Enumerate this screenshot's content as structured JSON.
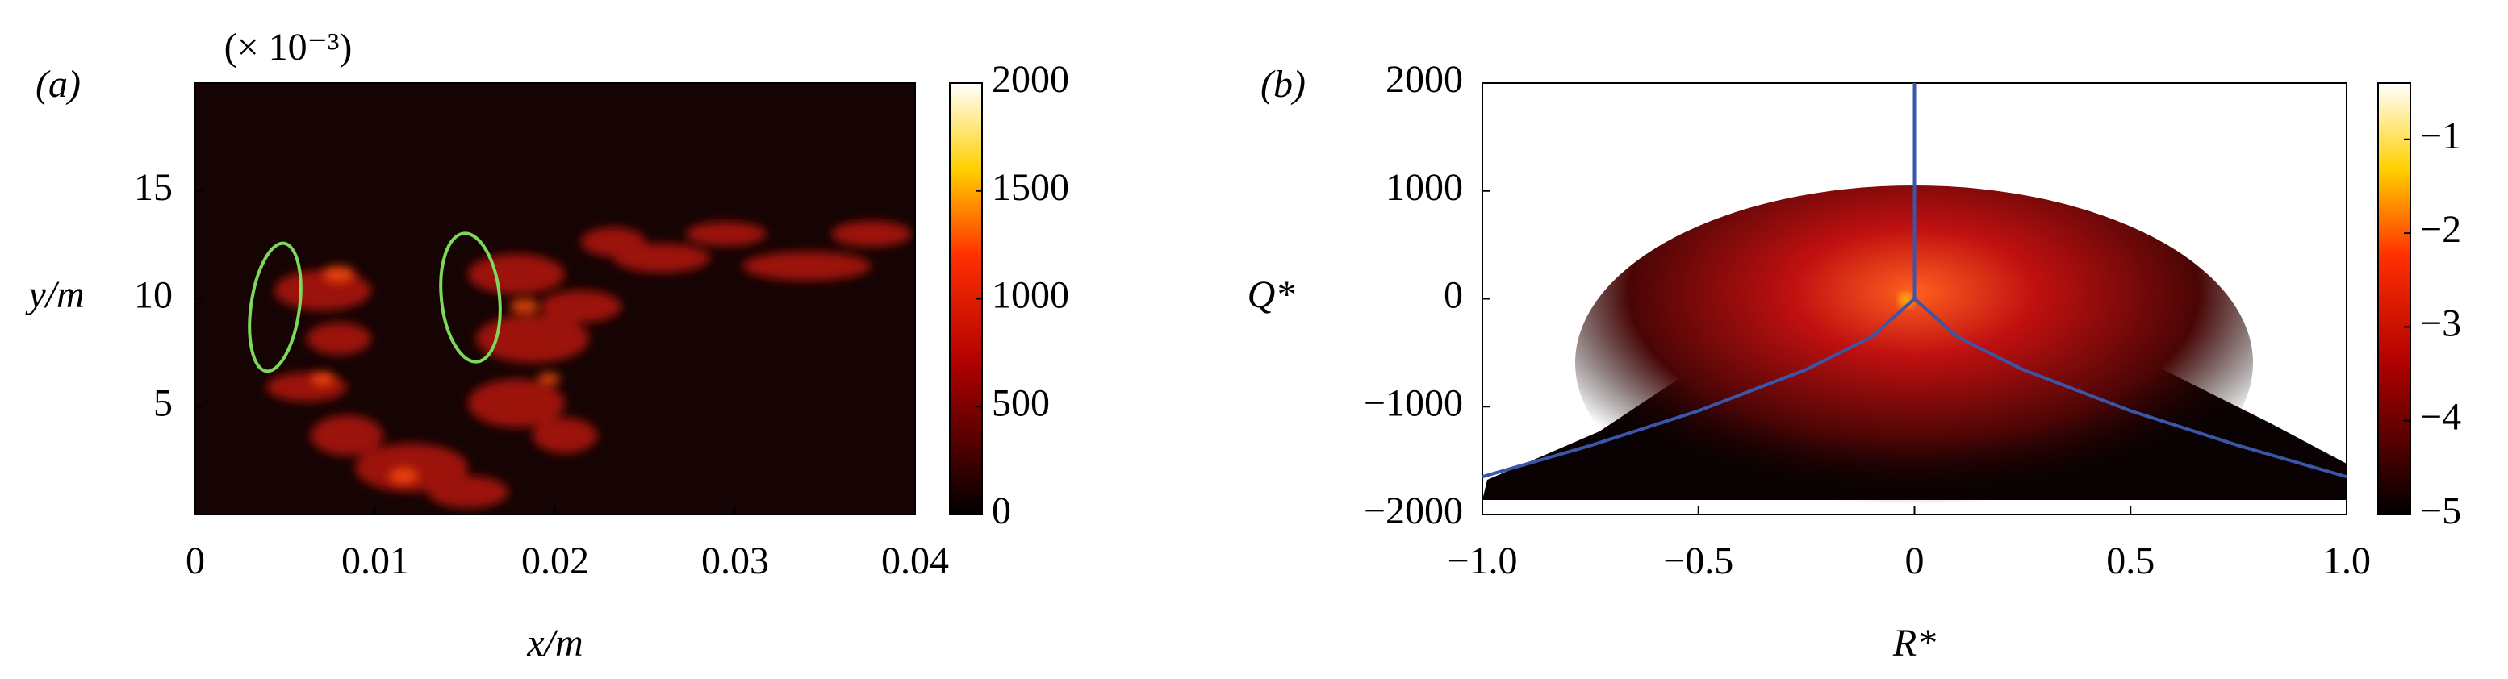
{
  "chart_data": [
    {
      "type": "heatmap",
      "panel_label": "(a)",
      "x_label": "x/m",
      "y_label": "y/m",
      "y_multiplier": "(× 10⁻³)",
      "xlim": [
        0,
        0.04
      ],
      "xticks": [
        0,
        0.01,
        0.02,
        0.03,
        0.04
      ],
      "ylim": [
        0,
        20
      ],
      "yticks": [
        5,
        10,
        15
      ],
      "colorbar": {
        "lim": [
          0,
          2000
        ],
        "ticks": [
          0,
          500,
          1000,
          1500,
          2000
        ]
      },
      "colormap": "hot"
    },
    {
      "type": "histogram2d",
      "panel_label": "(b)",
      "x_label": "R*",
      "y_label": "Q*",
      "xlim": [
        -1,
        1
      ],
      "xticks": [
        {
          "value": -1,
          "label": "−1.0"
        },
        {
          "value": -0.5,
          "label": "−0.5"
        },
        0,
        0.5,
        {
          "value": 1,
          "label": "1.0"
        }
      ],
      "ylim": [
        -2000,
        2000
      ],
      "yticks": [
        {
          "value": -2000,
          "label": "−2000"
        },
        {
          "value": -1000,
          "label": "−1000"
        },
        0,
        1000,
        2000
      ],
      "colorbar": {
        "lim": [
          -5,
          -0.4
        ],
        "ticks": [
          {
            "value": -5,
            "label": "−5"
          },
          {
            "value": -4,
            "label": "−4"
          },
          {
            "value": -3,
            "label": "−3"
          },
          {
            "value": -2,
            "label": "−2"
          },
          {
            "value": -1,
            "label": "−1"
          }
        ]
      },
      "colormap": "hot",
      "lines": [
        {
          "color": "#3b56a8",
          "x": [
            -1,
            -0.75,
            -0.5,
            -0.25,
            -0.1,
            0,
            0.1,
            0.25,
            0.5,
            0.75,
            1
          ],
          "y": [
            -1650,
            -1361,
            -1039,
            -655,
            -355,
            0,
            -355,
            -655,
            -1039,
            -1361,
            -1650
          ]
        },
        {
          "color": "#3b56a8",
          "x": [
            0,
            0
          ],
          "y": [
            0,
            2000
          ]
        }
      ]
    }
  ]
}
